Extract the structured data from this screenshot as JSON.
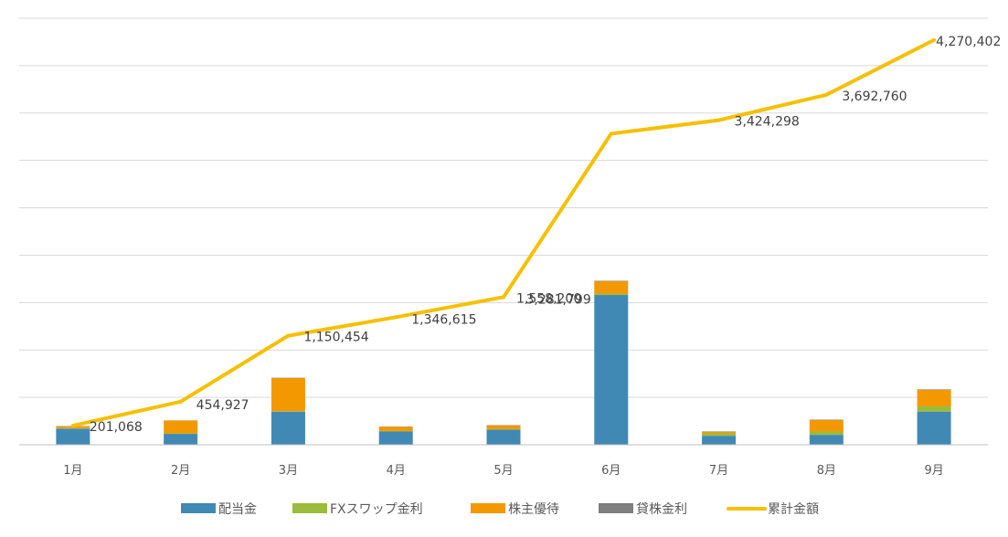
{
  "chart_data": {
    "type": "bar",
    "subtype": "stacked-bar-with-line",
    "categories": [
      "1月",
      "2月",
      "3月",
      "4月",
      "5月",
      "6月",
      "7月",
      "8月",
      "9月"
    ],
    "ylim": [
      0,
      4500000
    ],
    "grid": true,
    "legend_position": "bottom",
    "series": [
      {
        "name": "配当金",
        "kind": "bar",
        "color": "#4189b5",
        "values": [
          170000,
          115000,
          350000,
          140000,
          160000,
          1580000,
          95000,
          105000,
          350000
        ]
      },
      {
        "name": "FXスワップ金利",
        "kind": "bar",
        "color": "#9bbb3b",
        "values": [
          5000,
          5000,
          5000,
          5000,
          5000,
          15000,
          25000,
          35000,
          55000
        ]
      },
      {
        "name": "株主優待",
        "kind": "bar",
        "color": "#f39800",
        "values": [
          20000,
          135000,
          350000,
          45000,
          40000,
          130000,
          15000,
          120000,
          175000
        ]
      },
      {
        "name": "貸株金利",
        "kind": "bar",
        "color": "#7f7f7f",
        "values": [
          3000,
          2000,
          3000,
          3000,
          3000,
          5000,
          5000,
          5000,
          5000
        ]
      },
      {
        "name": "累計金額",
        "kind": "line",
        "color": "#f5c000",
        "values": [
          201068,
          454927,
          1150454,
          1346615,
          1558200,
          3281799,
          3424298,
          3692760,
          4270402
        ],
        "labels": [
          "201,068",
          "454,927",
          "1,150,454",
          "1,346,615",
          "1,558,200",
          "3,281,799",
          "3,424,298",
          "3,692,760",
          "4,270,402"
        ]
      }
    ]
  }
}
